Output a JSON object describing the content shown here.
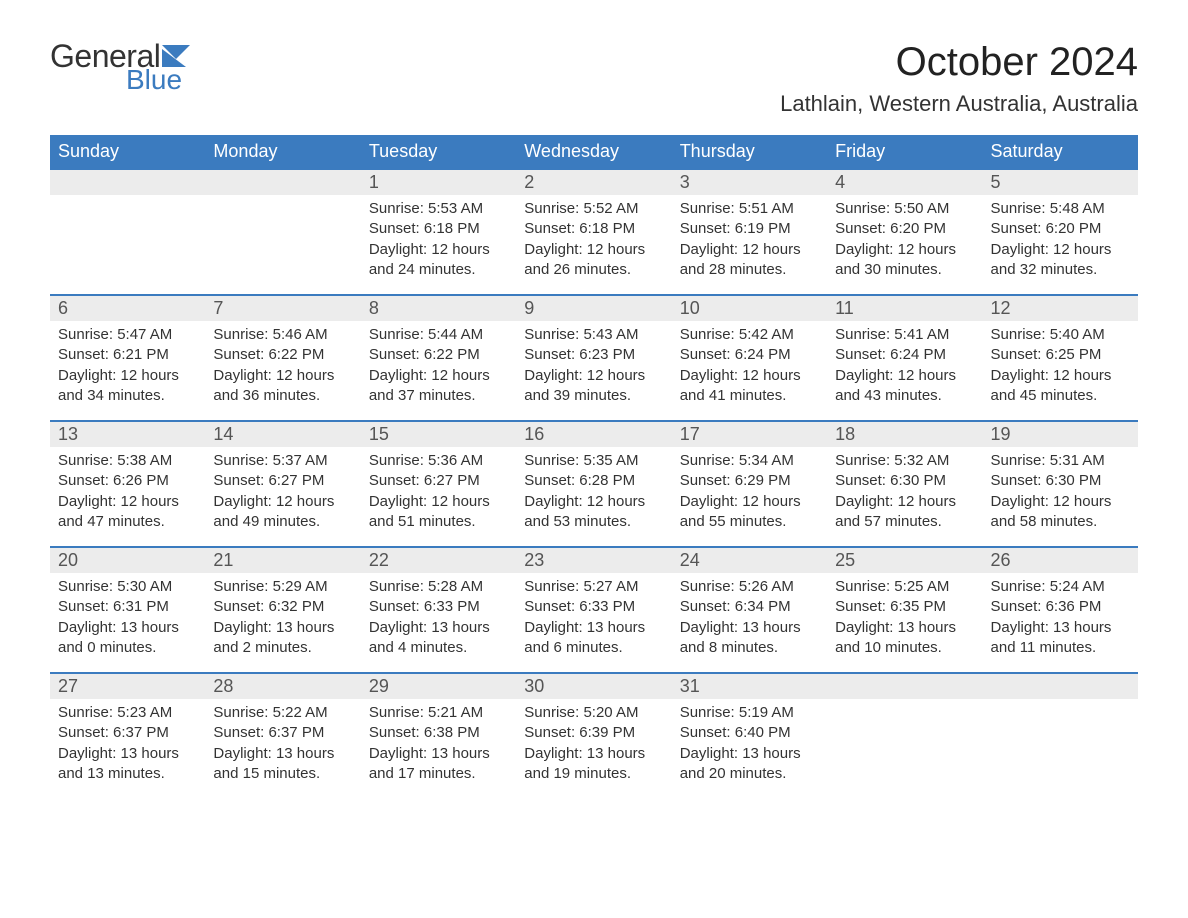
{
  "logo": {
    "general": "General",
    "blue": "Blue",
    "flag_color": "#3b7bbf"
  },
  "header": {
    "month_title": "October 2024",
    "location": "Lathlain, Western Australia, Australia"
  },
  "colors": {
    "header_bg": "#3b7bbf",
    "daynum_bg": "#ececec",
    "row_border": "#3b7bbf",
    "text": "#333333",
    "title_text": "#222222"
  },
  "calendar": {
    "weekdays": [
      "Sunday",
      "Monday",
      "Tuesday",
      "Wednesday",
      "Thursday",
      "Friday",
      "Saturday"
    ],
    "weeks": [
      [
        null,
        null,
        {
          "n": "1",
          "sunrise": "Sunrise: 5:53 AM",
          "sunset": "Sunset: 6:18 PM",
          "day1": "Daylight: 12 hours",
          "day2": "and 24 minutes."
        },
        {
          "n": "2",
          "sunrise": "Sunrise: 5:52 AM",
          "sunset": "Sunset: 6:18 PM",
          "day1": "Daylight: 12 hours",
          "day2": "and 26 minutes."
        },
        {
          "n": "3",
          "sunrise": "Sunrise: 5:51 AM",
          "sunset": "Sunset: 6:19 PM",
          "day1": "Daylight: 12 hours",
          "day2": "and 28 minutes."
        },
        {
          "n": "4",
          "sunrise": "Sunrise: 5:50 AM",
          "sunset": "Sunset: 6:20 PM",
          "day1": "Daylight: 12 hours",
          "day2": "and 30 minutes."
        },
        {
          "n": "5",
          "sunrise": "Sunrise: 5:48 AM",
          "sunset": "Sunset: 6:20 PM",
          "day1": "Daylight: 12 hours",
          "day2": "and 32 minutes."
        }
      ],
      [
        {
          "n": "6",
          "sunrise": "Sunrise: 5:47 AM",
          "sunset": "Sunset: 6:21 PM",
          "day1": "Daylight: 12 hours",
          "day2": "and 34 minutes."
        },
        {
          "n": "7",
          "sunrise": "Sunrise: 5:46 AM",
          "sunset": "Sunset: 6:22 PM",
          "day1": "Daylight: 12 hours",
          "day2": "and 36 minutes."
        },
        {
          "n": "8",
          "sunrise": "Sunrise: 5:44 AM",
          "sunset": "Sunset: 6:22 PM",
          "day1": "Daylight: 12 hours",
          "day2": "and 37 minutes."
        },
        {
          "n": "9",
          "sunrise": "Sunrise: 5:43 AM",
          "sunset": "Sunset: 6:23 PM",
          "day1": "Daylight: 12 hours",
          "day2": "and 39 minutes."
        },
        {
          "n": "10",
          "sunrise": "Sunrise: 5:42 AM",
          "sunset": "Sunset: 6:24 PM",
          "day1": "Daylight: 12 hours",
          "day2": "and 41 minutes."
        },
        {
          "n": "11",
          "sunrise": "Sunrise: 5:41 AM",
          "sunset": "Sunset: 6:24 PM",
          "day1": "Daylight: 12 hours",
          "day2": "and 43 minutes."
        },
        {
          "n": "12",
          "sunrise": "Sunrise: 5:40 AM",
          "sunset": "Sunset: 6:25 PM",
          "day1": "Daylight: 12 hours",
          "day2": "and 45 minutes."
        }
      ],
      [
        {
          "n": "13",
          "sunrise": "Sunrise: 5:38 AM",
          "sunset": "Sunset: 6:26 PM",
          "day1": "Daylight: 12 hours",
          "day2": "and 47 minutes."
        },
        {
          "n": "14",
          "sunrise": "Sunrise: 5:37 AM",
          "sunset": "Sunset: 6:27 PM",
          "day1": "Daylight: 12 hours",
          "day2": "and 49 minutes."
        },
        {
          "n": "15",
          "sunrise": "Sunrise: 5:36 AM",
          "sunset": "Sunset: 6:27 PM",
          "day1": "Daylight: 12 hours",
          "day2": "and 51 minutes."
        },
        {
          "n": "16",
          "sunrise": "Sunrise: 5:35 AM",
          "sunset": "Sunset: 6:28 PM",
          "day1": "Daylight: 12 hours",
          "day2": "and 53 minutes."
        },
        {
          "n": "17",
          "sunrise": "Sunrise: 5:34 AM",
          "sunset": "Sunset: 6:29 PM",
          "day1": "Daylight: 12 hours",
          "day2": "and 55 minutes."
        },
        {
          "n": "18",
          "sunrise": "Sunrise: 5:32 AM",
          "sunset": "Sunset: 6:30 PM",
          "day1": "Daylight: 12 hours",
          "day2": "and 57 minutes."
        },
        {
          "n": "19",
          "sunrise": "Sunrise: 5:31 AM",
          "sunset": "Sunset: 6:30 PM",
          "day1": "Daylight: 12 hours",
          "day2": "and 58 minutes."
        }
      ],
      [
        {
          "n": "20",
          "sunrise": "Sunrise: 5:30 AM",
          "sunset": "Sunset: 6:31 PM",
          "day1": "Daylight: 13 hours",
          "day2": "and 0 minutes."
        },
        {
          "n": "21",
          "sunrise": "Sunrise: 5:29 AM",
          "sunset": "Sunset: 6:32 PM",
          "day1": "Daylight: 13 hours",
          "day2": "and 2 minutes."
        },
        {
          "n": "22",
          "sunrise": "Sunrise: 5:28 AM",
          "sunset": "Sunset: 6:33 PM",
          "day1": "Daylight: 13 hours",
          "day2": "and 4 minutes."
        },
        {
          "n": "23",
          "sunrise": "Sunrise: 5:27 AM",
          "sunset": "Sunset: 6:33 PM",
          "day1": "Daylight: 13 hours",
          "day2": "and 6 minutes."
        },
        {
          "n": "24",
          "sunrise": "Sunrise: 5:26 AM",
          "sunset": "Sunset: 6:34 PM",
          "day1": "Daylight: 13 hours",
          "day2": "and 8 minutes."
        },
        {
          "n": "25",
          "sunrise": "Sunrise: 5:25 AM",
          "sunset": "Sunset: 6:35 PM",
          "day1": "Daylight: 13 hours",
          "day2": "and 10 minutes."
        },
        {
          "n": "26",
          "sunrise": "Sunrise: 5:24 AM",
          "sunset": "Sunset: 6:36 PM",
          "day1": "Daylight: 13 hours",
          "day2": "and 11 minutes."
        }
      ],
      [
        {
          "n": "27",
          "sunrise": "Sunrise: 5:23 AM",
          "sunset": "Sunset: 6:37 PM",
          "day1": "Daylight: 13 hours",
          "day2": "and 13 minutes."
        },
        {
          "n": "28",
          "sunrise": "Sunrise: 5:22 AM",
          "sunset": "Sunset: 6:37 PM",
          "day1": "Daylight: 13 hours",
          "day2": "and 15 minutes."
        },
        {
          "n": "29",
          "sunrise": "Sunrise: 5:21 AM",
          "sunset": "Sunset: 6:38 PM",
          "day1": "Daylight: 13 hours",
          "day2": "and 17 minutes."
        },
        {
          "n": "30",
          "sunrise": "Sunrise: 5:20 AM",
          "sunset": "Sunset: 6:39 PM",
          "day1": "Daylight: 13 hours",
          "day2": "and 19 minutes."
        },
        {
          "n": "31",
          "sunrise": "Sunrise: 5:19 AM",
          "sunset": "Sunset: 6:40 PM",
          "day1": "Daylight: 13 hours",
          "day2": "and 20 minutes."
        },
        null,
        null
      ]
    ]
  }
}
